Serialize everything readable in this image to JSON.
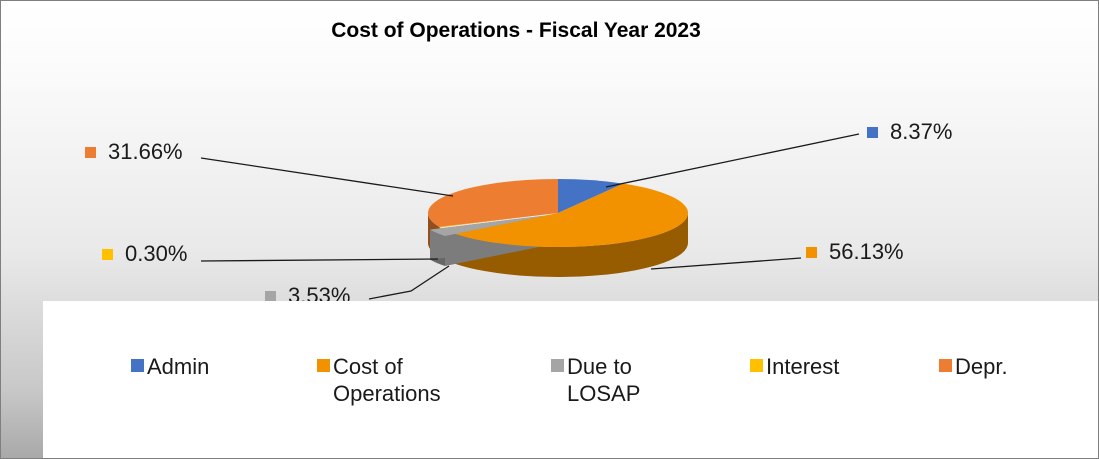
{
  "chart_data": {
    "type": "pie",
    "title": "Cost of Operations - Fiscal Year 2023",
    "categories": [
      "Admin",
      "Cost of Operations",
      "Due to LOSAP",
      "Interest",
      "Depr."
    ],
    "values": [
      8.37,
      56.13,
      3.53,
      0.3,
      31.66
    ],
    "data_labels": [
      "8.37%",
      "56.13%",
      "3.53%",
      "0.30%",
      "31.66%"
    ],
    "colors": [
      "#4472c4",
      "#f39200",
      "#a5a5a5",
      "#ffc000",
      "#ed7d31"
    ],
    "style": "3d",
    "legend_position": "bottom"
  },
  "legend": {
    "items": [
      {
        "label_lines": [
          "Admin",
          ""
        ]
      },
      {
        "label_lines": [
          "Cost of",
          "Operations"
        ]
      },
      {
        "label_lines": [
          "Due to",
          "LOSAP"
        ]
      },
      {
        "label_lines": [
          "Interest",
          ""
        ]
      },
      {
        "label_lines": [
          "Depr.",
          ""
        ]
      }
    ]
  }
}
